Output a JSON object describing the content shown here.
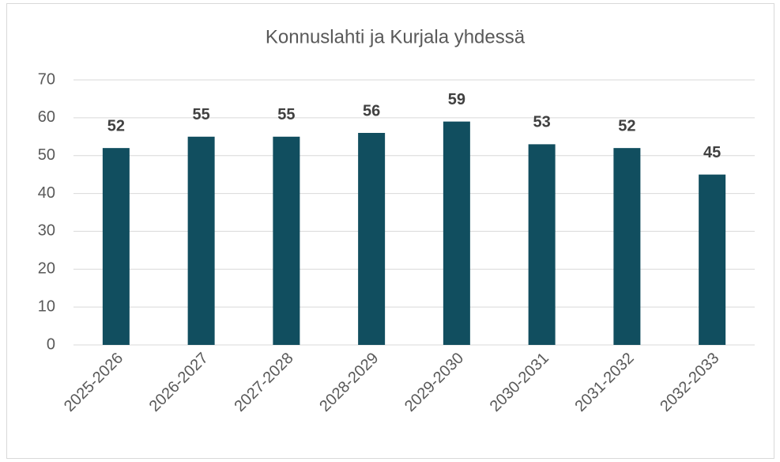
{
  "chart_data": {
    "type": "bar",
    "title": "Konnuslahti ja Kurjala yhdessä",
    "categories": [
      "2025-2026",
      "2026-2027",
      "2027-2028",
      "2028-2029",
      "2029-2030",
      "2030-2031",
      "2031-2032",
      "2032-2033"
    ],
    "values": [
      52,
      55,
      55,
      56,
      59,
      53,
      52,
      45
    ],
    "color": "#114e5f",
    "ylim": [
      0,
      70
    ],
    "yticks": [
      0,
      10,
      20,
      30,
      40,
      50,
      60,
      70
    ],
    "grid": true,
    "data_labels": true
  }
}
